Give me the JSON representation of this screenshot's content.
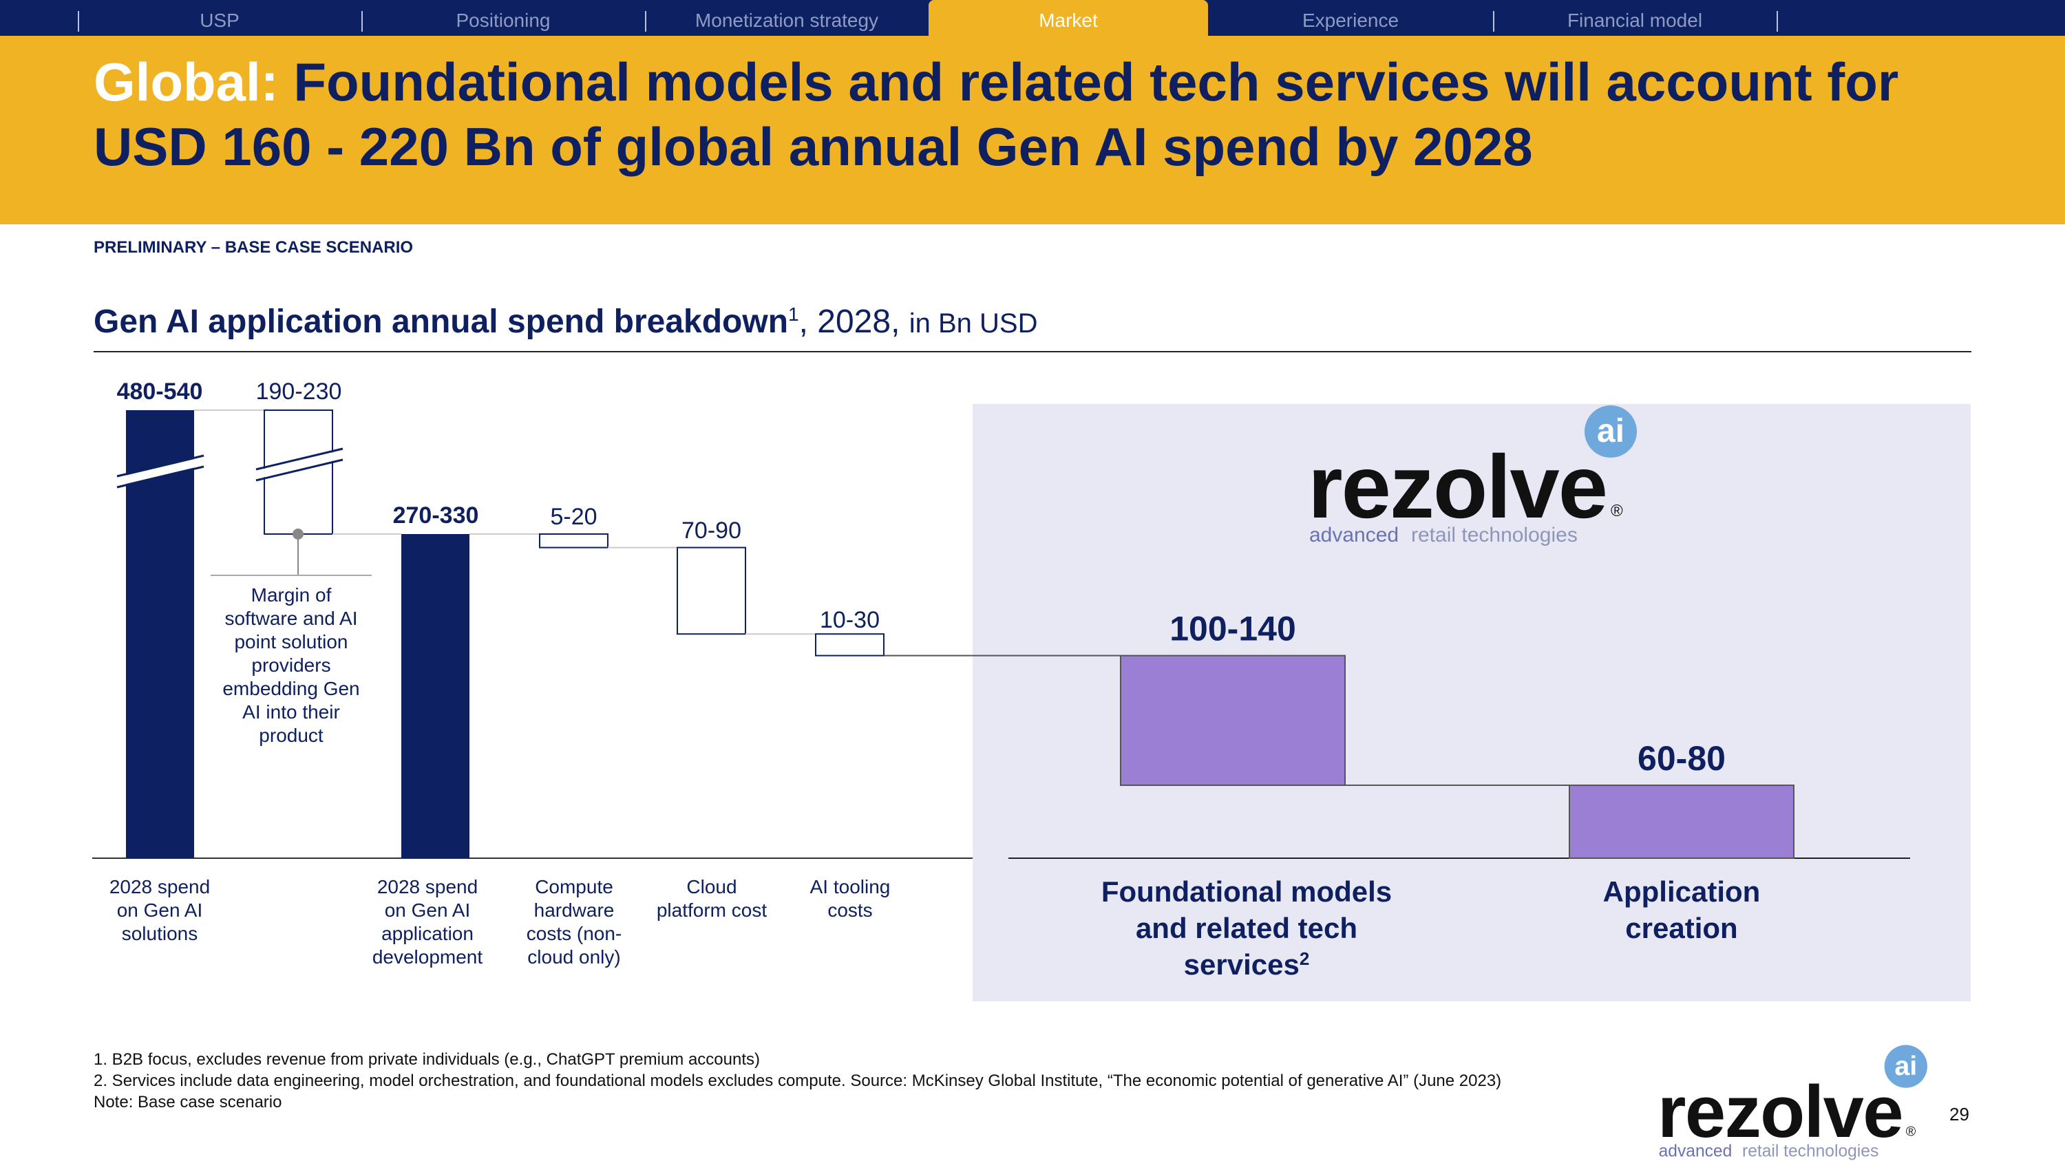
{
  "nav": {
    "tabs": [
      "USP",
      "Positioning",
      "Monetization strategy",
      "Market",
      "Experience",
      "Financial model"
    ],
    "active": "Market"
  },
  "header": {
    "title_highlight": "Global:",
    "title_rest": "Foundational models and related tech services will account for USD 160 - 220 Bn of global annual Gen AI spend by 2028"
  },
  "scenario_label": "PRELIMINARY – BASE CASE SCENARIO",
  "chart_header": {
    "title_bold": "Gen AI application annual spend breakdown",
    "footnote_mark": "1",
    "year": ", 2028,",
    "unit": "in Bn USD"
  },
  "logo": {
    "word": "rezolve",
    "badge": "ai",
    "registered": "®",
    "tagline_a": "advanced",
    "tagline_b": "retail technologies"
  },
  "chart_data": {
    "type": "waterfall",
    "title": "Gen AI application annual spend breakdown",
    "unit": "Bn USD",
    "year": 2028,
    "steps": [
      {
        "label": "2028 spend on Gen AI solutions",
        "value_label": "480-540",
        "low": 480,
        "high": 540,
        "kind": "total"
      },
      {
        "label": "Margin of software and AI point solution providers embedding Gen AI into their product",
        "value_label": "190-230",
        "low": 190,
        "high": 230,
        "kind": "decrease"
      },
      {
        "label": "2028 spend on Gen AI application development",
        "value_label": "270-330",
        "low": 270,
        "high": 330,
        "kind": "total"
      },
      {
        "label": "Compute hardware costs (non-cloud only)",
        "value_label": "5-20",
        "low": 5,
        "high": 20,
        "kind": "decrease"
      },
      {
        "label": "Cloud platform cost",
        "value_label": "70-90",
        "low": 70,
        "high": 90,
        "kind": "decrease"
      },
      {
        "label": "AI tooling costs",
        "value_label": "10-30",
        "low": 10,
        "high": 30,
        "kind": "decrease"
      },
      {
        "label": "Foundational models and related tech services",
        "footnote": "2",
        "value_label": "100-140",
        "low": 100,
        "high": 140,
        "kind": "segment"
      },
      {
        "label": "Application creation",
        "value_label": "60-80",
        "low": 60,
        "high": 80,
        "kind": "segment"
      }
    ],
    "axis_break": true,
    "colors": {
      "total": "#0c2062",
      "segment": "#9b7fd4",
      "highlight_panel": "#e8e8f5"
    }
  },
  "footnotes": [
    "1.   B2B focus, excludes revenue from private individuals (e.g., ChatGPT premium accounts)",
    "2.   Services include data engineering, model orchestration, and foundational models excludes compute. Source: McKinsey Global Institute, “The economic potential of generative AI” (June 2023)",
    "Note: Base case scenario"
  ],
  "page_number": "29"
}
